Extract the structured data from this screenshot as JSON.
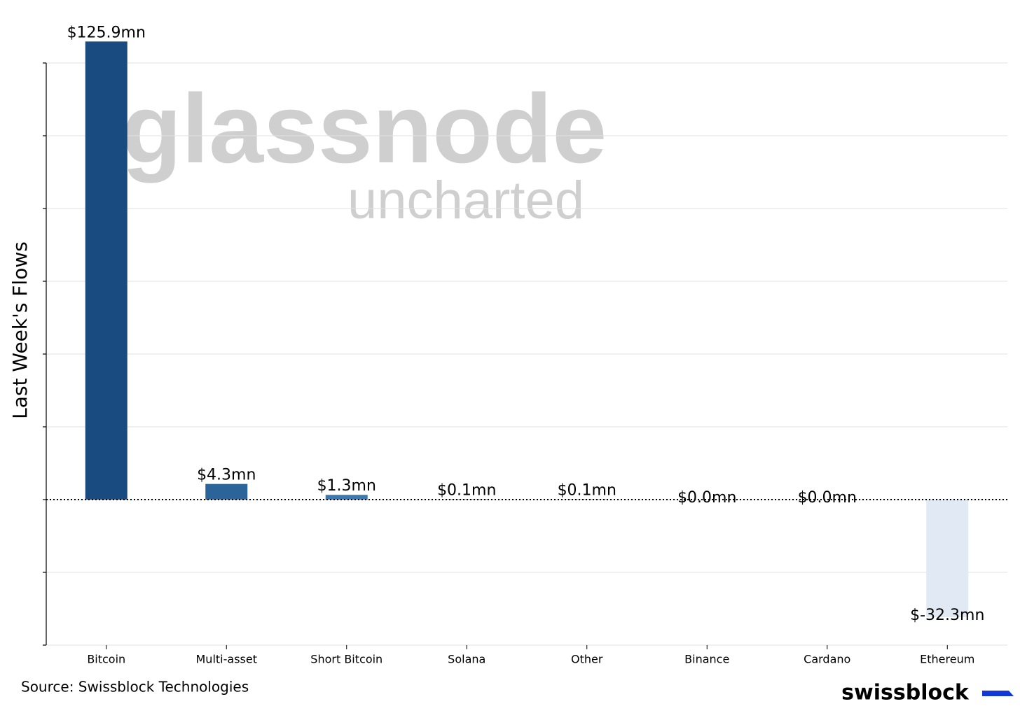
{
  "chart_data": {
    "type": "bar",
    "y_label": "Last Week's Flows",
    "categories": [
      "Bitcoin",
      "Multi-asset",
      "Short Bitcoin",
      "Solana",
      "Other",
      "Binance",
      "Cardano",
      "Ethereum"
    ],
    "values": [
      125.9,
      4.3,
      1.3,
      0.1,
      0.1,
      0.0,
      0.0,
      -32.3
    ],
    "value_labels": [
      "$125.9mn",
      "$4.3mn",
      "$1.3mn",
      "$0.1mn",
      "$0.1mn",
      "$0.0mn",
      "$0.0mn",
      "$-32.3mn"
    ],
    "colors": [
      "#1a4b80",
      "#2a6498",
      "#3b78ad",
      "#4f89bb",
      "#6a9cc7",
      "#8fb3d6",
      "#b6cde5",
      "#e0e9f4"
    ],
    "ylim": [
      -40,
      120
    ],
    "yticks": [
      -40,
      -20,
      0,
      20,
      40,
      60,
      80,
      100,
      120
    ],
    "grid": true,
    "watermark": [
      "glassnode",
      "uncharted"
    ],
    "source": "Source: Swissblock Technologies",
    "brand": "swissblock"
  }
}
